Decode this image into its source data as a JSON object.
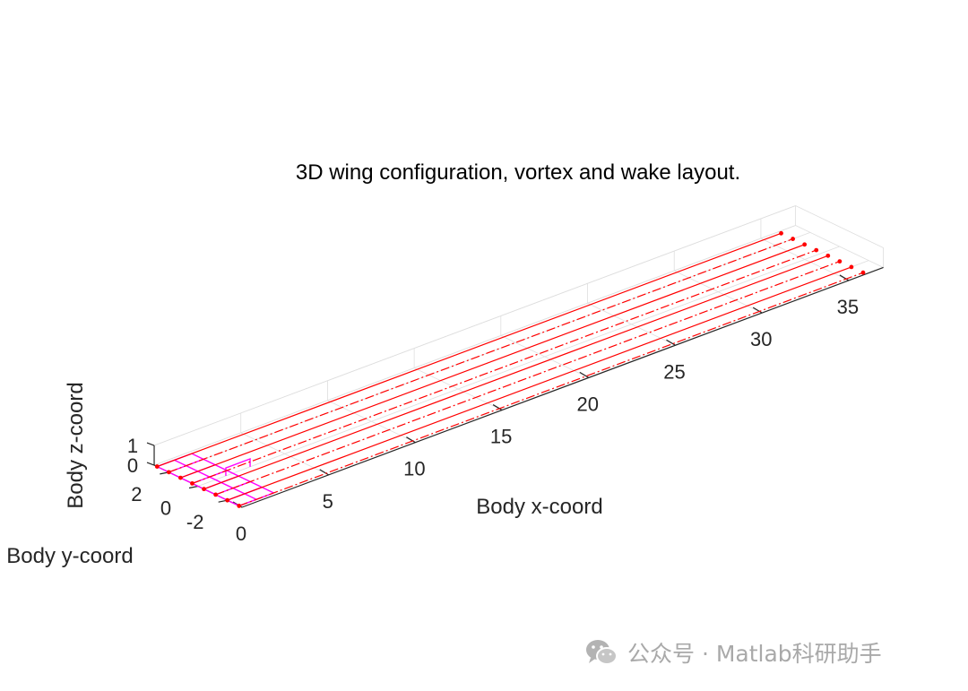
{
  "chart_data": {
    "type": "line",
    "projection": "3d",
    "title": "3D wing configuration, vortex and wake layout.",
    "xlabel": "Body x-coord",
    "ylabel": "Body y-coord",
    "zlabel": "Body z-coord",
    "xlim": [
      0,
      37
    ],
    "ylim": [
      -3,
      3
    ],
    "zlim": [
      0,
      1
    ],
    "x_ticks": [
      "0",
      "5",
      "10",
      "15",
      "20",
      "25",
      "30",
      "35"
    ],
    "y_ticks": [
      "2",
      "0",
      "-2"
    ],
    "z_ticks": [
      "0",
      "1"
    ],
    "grid": true,
    "colors": {
      "wake": "#ff0000",
      "wing_panels": "#ff00ff",
      "axis": "#262626",
      "grid": "#dedede"
    },
    "series": [
      {
        "style": "dash-dot",
        "x": [
          0,
          36
        ],
        "y": [
          -2.8,
          -2.8
        ],
        "z": [
          0,
          0
        ]
      },
      {
        "style": "solid",
        "x": [
          0,
          36
        ],
        "y": [
          -2.0,
          -2.0
        ],
        "z": [
          0,
          0
        ]
      },
      {
        "style": "dash-dot",
        "x": [
          0,
          36
        ],
        "y": [
          -1.2,
          -1.2
        ],
        "z": [
          0,
          0
        ]
      },
      {
        "style": "solid",
        "x": [
          0,
          36
        ],
        "y": [
          -0.4,
          -0.4
        ],
        "z": [
          0,
          0
        ]
      },
      {
        "style": "dash-dot",
        "x": [
          0,
          36
        ],
        "y": [
          0.4,
          0.4
        ],
        "z": [
          0,
          0
        ]
      },
      {
        "style": "solid",
        "x": [
          0,
          36
        ],
        "y": [
          1.2,
          1.2
        ],
        "z": [
          0,
          0
        ]
      },
      {
        "style": "dash-dot",
        "x": [
          0,
          36
        ],
        "y": [
          2.0,
          2.0
        ],
        "z": [
          0,
          0
        ]
      },
      {
        "style": "solid",
        "x": [
          0,
          36
        ],
        "y": [
          2.8,
          2.8
        ],
        "z": [
          0,
          0
        ]
      }
    ],
    "wing_grid": {
      "chord_lines_x": [
        0,
        1,
        2
      ],
      "span_lines_y": [
        -2.8,
        -2.0,
        -1.2,
        -0.4,
        0.4,
        1.2,
        2.0,
        2.8
      ],
      "tail_fin": {
        "x": [
          1.6,
          3.0
        ],
        "y": 0,
        "z": [
          0,
          0.4
        ]
      }
    }
  },
  "watermark": {
    "text": "公众号 · Matlab科研助手",
    "icon": "wechat-icon"
  }
}
